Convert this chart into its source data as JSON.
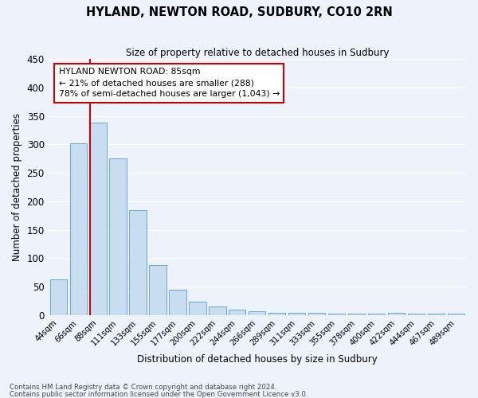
{
  "title": "HYLAND, NEWTON ROAD, SUDBURY, CO10 2RN",
  "subtitle": "Size of property relative to detached houses in Sudbury",
  "xlabel": "Distribution of detached houses by size in Sudbury",
  "ylabel": "Number of detached properties",
  "categories": [
    "44sqm",
    "66sqm",
    "88sqm",
    "111sqm",
    "133sqm",
    "155sqm",
    "177sqm",
    "200sqm",
    "222sqm",
    "244sqm",
    "266sqm",
    "289sqm",
    "311sqm",
    "333sqm",
    "355sqm",
    "378sqm",
    "400sqm",
    "422sqm",
    "444sqm",
    "467sqm",
    "489sqm"
  ],
  "values": [
    62,
    302,
    338,
    275,
    185,
    88,
    45,
    24,
    15,
    10,
    6,
    4,
    4,
    4,
    3,
    2,
    2,
    4,
    2,
    3,
    2
  ],
  "bar_color": "#c9ddf0",
  "bar_edge_color": "#6aaad4",
  "vline_color": "#cc0000",
  "vline_idx": 1.6,
  "ylim": [
    0,
    450
  ],
  "yticks": [
    0,
    50,
    100,
    150,
    200,
    250,
    300,
    350,
    400,
    450
  ],
  "annotation_title": "HYLAND NEWTON ROAD: 85sqm",
  "annotation_line1": "← 21% of detached houses are smaller (288)",
  "annotation_line2": "78% of semi-detached houses are larger (1,043) →",
  "annotation_box_color": "#cc0000",
  "footnote1": "Contains HM Land Registry data © Crown copyright and database right 2024.",
  "footnote2": "Contains public sector information licensed under the Open Government Licence v3.0.",
  "background_color": "#eef2fb",
  "grid_color": "#ffffff"
}
